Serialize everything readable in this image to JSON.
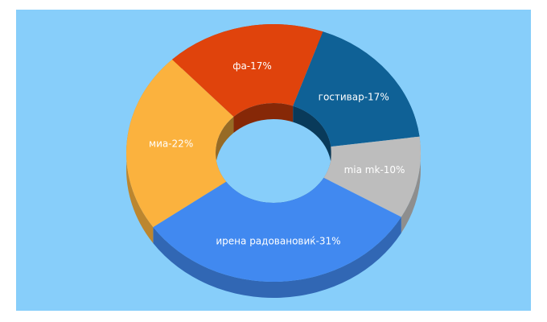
{
  "chart_data": {
    "type": "donut3d",
    "values": [
      17,
      10,
      31,
      22,
      17
    ],
    "value_labels": [
      "гостивар-17%",
      "mia mk-10%",
      "ирена радовановиќ-31%",
      "миа-22%",
      "фа-17%"
    ],
    "colors": [
      "#0f6196",
      "#bdbdbd",
      "#4189f0",
      "#fbb23e",
      "#e0430c"
    ]
  }
}
